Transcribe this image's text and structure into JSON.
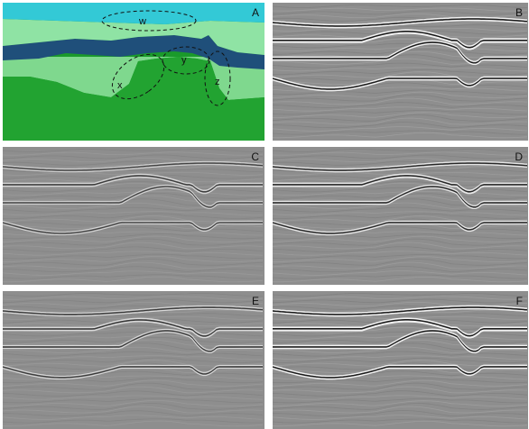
{
  "panels": [
    {
      "id": "A",
      "label": "A",
      "kind": "model"
    },
    {
      "id": "B",
      "label": "B",
      "kind": "seismic",
      "contrast": 1.0
    },
    {
      "id": "C",
      "label": "C",
      "kind": "seismic",
      "contrast": 0.45
    },
    {
      "id": "D",
      "label": "D",
      "kind": "seismic",
      "contrast": 0.8
    },
    {
      "id": "E",
      "label": "E",
      "kind": "seismic",
      "contrast": 0.55
    },
    {
      "id": "F",
      "label": "F",
      "kind": "seismic",
      "contrast": 1.0
    }
  ],
  "model_zones": {
    "w": "w",
    "x": "x",
    "y": "y",
    "z": "z"
  },
  "model_colors": {
    "top_water": "#33c9d6",
    "light_green": "#8fe3a4",
    "dark_blue": "#1f4f7a",
    "mid_green": "#7fd88e",
    "dark_green": "#22a331",
    "deep_green": "#1a9a2b"
  }
}
